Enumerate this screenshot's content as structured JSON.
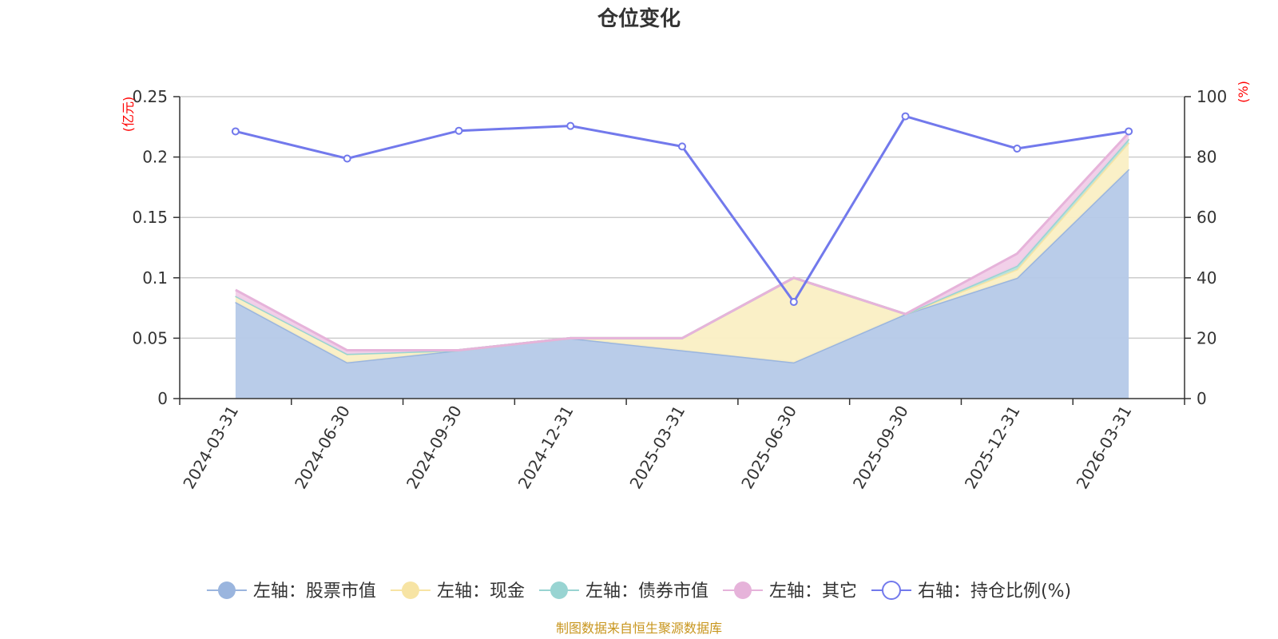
{
  "chart_data": {
    "type": "area",
    "title": "仓位变化",
    "categories": [
      "2024-03-31",
      "2024-06-30",
      "2024-09-30",
      "2024-12-31",
      "2025-03-31",
      "2025-06-30",
      "2025-09-30",
      "2025-12-31",
      "2026-03-31"
    ],
    "left_axis": {
      "unit": "(亿元)",
      "ylim": [
        0,
        0.25
      ],
      "ticks": [
        "0",
        "0.05",
        "0.1",
        "0.15",
        "0.2",
        "0.25"
      ]
    },
    "right_axis": {
      "unit": "(%)",
      "ylim": [
        0,
        100
      ],
      "ticks": [
        "0",
        "20",
        "40",
        "60",
        "80",
        "100"
      ]
    },
    "series": [
      {
        "name": "左轴：股票市值",
        "axis": "left",
        "color": "#9ab5de",
        "fill": "#b5c9e8",
        "values": [
          0.08,
          0.03,
          0.04,
          0.05,
          0.04,
          0.03,
          0.07,
          0.1,
          0.19
        ]
      },
      {
        "name": "左轴：现金",
        "axis": "left",
        "color": "#f7e4a4",
        "fill": "#faefc4",
        "values": [
          0.005,
          0.007,
          0.0,
          0.0,
          0.01,
          0.07,
          0.0,
          0.007,
          0.022
        ]
      },
      {
        "name": "左轴：债券市值",
        "axis": "left",
        "color": "#98d4d2",
        "fill": "#b6e0dc",
        "values": [
          0.0,
          0.0,
          0.0,
          0.0,
          0.0,
          0.0,
          0.0,
          0.003,
          0.003
        ]
      },
      {
        "name": "左轴：其它",
        "axis": "left",
        "color": "#e6b3da",
        "fill": "#f1cde8",
        "values": [
          0.005,
          0.003,
          0.0,
          0.0,
          0.0,
          0.0,
          0.0,
          0.01,
          0.005
        ]
      },
      {
        "name": "右轴：持仓比例(%)",
        "axis": "right",
        "color": "#7279ec",
        "values": [
          88.5,
          79.5,
          88.7,
          90.3,
          83.5,
          32.0,
          93.5,
          82.8,
          88.5
        ]
      }
    ],
    "source": "制图数据来自恒生聚源数据库"
  }
}
